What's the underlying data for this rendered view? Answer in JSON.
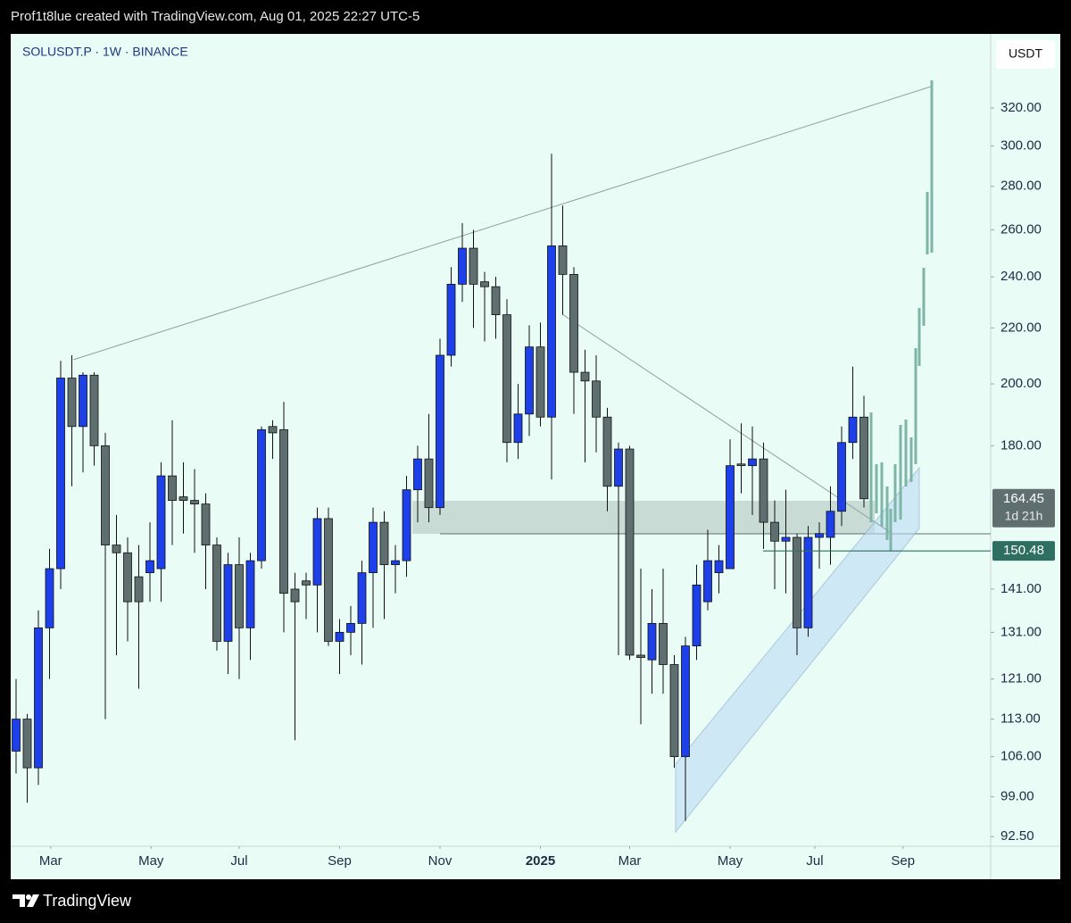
{
  "header": "Prof1t8lue created with TradingView.com, Aug 01, 2025 22:27 UTC-5",
  "footer": "TradingView",
  "chart_data": {
    "type": "candlestick",
    "title": "SOLUSDT.P · 1W · BINANCE",
    "y_axis_label": "USDT",
    "log_scale": true,
    "grid": false,
    "up_color": "#1e40e8",
    "down_color": "#5f6f6f",
    "x": [
      0,
      1,
      2,
      3,
      4,
      5,
      6,
      7,
      8,
      9,
      10,
      11,
      12,
      13,
      14,
      15,
      16,
      17,
      18,
      19,
      20,
      21,
      22,
      23,
      24,
      25,
      26,
      27,
      28,
      29,
      30,
      31,
      32,
      33,
      34,
      35,
      36,
      37,
      38,
      39,
      40,
      41,
      42,
      43,
      44,
      45,
      46,
      47,
      48,
      49,
      50,
      51,
      52,
      53,
      54,
      55,
      56,
      57,
      58,
      59,
      60,
      61,
      62,
      63,
      64,
      65,
      66,
      67,
      68,
      69,
      70,
      71,
      72,
      73,
      74,
      75,
      76
    ],
    "open": [
      107,
      113,
      104,
      132,
      146,
      202,
      186,
      203,
      180,
      152,
      150,
      144,
      145,
      146,
      171,
      165,
      164,
      163,
      152,
      129,
      147,
      132,
      148,
      186,
      185,
      141,
      143,
      142,
      159,
      129,
      131,
      133,
      145,
      158,
      147,
      148,
      167,
      176,
      162,
      210,
      237,
      252,
      238,
      236,
      225,
      181,
      190,
      213,
      189,
      253,
      241,
      204,
      201,
      189,
      168,
      179,
      126,
      125,
      133,
      124,
      106,
      128,
      138,
      145,
      146,
      174.5,
      174,
      176,
      158,
      153,
      154,
      132,
      154,
      154,
      161,
      181,
      189
    ],
    "high": [
      121,
      114,
      136,
      151,
      208,
      210,
      204,
      204,
      184,
      160,
      154,
      152,
      158,
      175,
      188,
      175,
      173,
      166,
      154,
      150,
      154,
      150,
      186,
      188,
      194,
      145,
      145,
      162,
      162,
      134,
      137,
      148,
      162,
      161,
      152,
      171,
      180,
      190,
      216,
      244,
      263,
      260,
      242,
      240,
      231,
      200,
      221,
      222,
      296,
      271,
      244,
      212,
      210,
      192,
      181,
      180,
      146,
      141,
      146,
      126,
      130,
      147,
      156,
      152,
      182,
      187,
      186,
      181,
      164,
      167,
      155,
      157,
      158,
      168,
      186,
      206,
      196
    ],
    "low": [
      103,
      98,
      101,
      121,
      141,
      168,
      172,
      174,
      113,
      126,
      129,
      119,
      138,
      138,
      152,
      155,
      150,
      141,
      127,
      122,
      121,
      125,
      146,
      176,
      131,
      109,
      134,
      131,
      128,
      122,
      126,
      124,
      132,
      134,
      140,
      144,
      158,
      158,
      160,
      206,
      230,
      220,
      215,
      216,
      175,
      176,
      183,
      186,
      170,
      225,
      190,
      175,
      178,
      161,
      126,
      125,
      112,
      118,
      118,
      104,
      95,
      125,
      136,
      140,
      146,
      166,
      160,
      151,
      141,
      140,
      126,
      130,
      146,
      147,
      157,
      176,
      162
    ],
    "close": [
      113,
      104,
      132,
      146,
      202,
      186,
      203,
      180,
      152,
      150,
      138,
      138,
      148,
      171,
      164,
      164,
      163,
      152,
      129,
      147,
      132,
      148,
      185,
      184,
      140,
      138,
      142,
      159,
      129,
      131,
      133,
      145,
      158,
      147,
      148,
      167,
      176,
      162,
      210,
      237,
      252,
      237,
      236,
      225,
      181,
      190,
      213,
      189,
      253,
      241,
      204,
      201,
      189,
      168,
      179,
      126,
      125.5,
      133,
      124,
      106,
      128,
      142,
      148,
      148,
      174,
      174,
      176,
      158,
      153,
      154,
      132,
      154,
      155,
      161,
      181,
      189,
      164.45
    ],
    "xlim": [
      -0.48,
      87.36
    ],
    "xticks": [
      {
        "value": 3.1,
        "label": "Mar"
      },
      {
        "value": 12.1,
        "label": "May"
      },
      {
        "value": 20.0,
        "label": "Jul"
      },
      {
        "value": 29.0,
        "label": "Sep"
      },
      {
        "value": 38.0,
        "label": "Nov"
      },
      {
        "value": 47.0,
        "label": "2025"
      },
      {
        "value": 55.0,
        "label": "Mar"
      },
      {
        "value": 64.0,
        "label": "May"
      },
      {
        "value": 71.6,
        "label": "Jul"
      },
      {
        "value": 79.5,
        "label": "Sep"
      }
    ],
    "ylim": [
      91,
      363
    ],
    "yticks": [
      {
        "value": 320,
        "label": "320.00"
      },
      {
        "value": 300,
        "label": "300.00"
      },
      {
        "value": 280,
        "label": "280.00"
      },
      {
        "value": 260,
        "label": "260.00"
      },
      {
        "value": 240,
        "label": "240.00"
      },
      {
        "value": 220,
        "label": "220.00"
      },
      {
        "value": 200,
        "label": "200.00"
      },
      {
        "value": 180,
        "label": "180.00"
      },
      {
        "value": 141,
        "label": "141.00"
      },
      {
        "value": 131,
        "label": "131.00"
      },
      {
        "value": 121,
        "label": "121.00"
      },
      {
        "value": 113,
        "label": "113.00"
      },
      {
        "value": 106,
        "label": "106.00"
      },
      {
        "value": 99,
        "label": "99.00"
      },
      {
        "value": 92.5,
        "label": "92.50"
      }
    ],
    "last_price": 164.45,
    "countdown": "1d 21h",
    "price_line": 150.48,
    "price_line_color": "#2f6f62"
  }
}
